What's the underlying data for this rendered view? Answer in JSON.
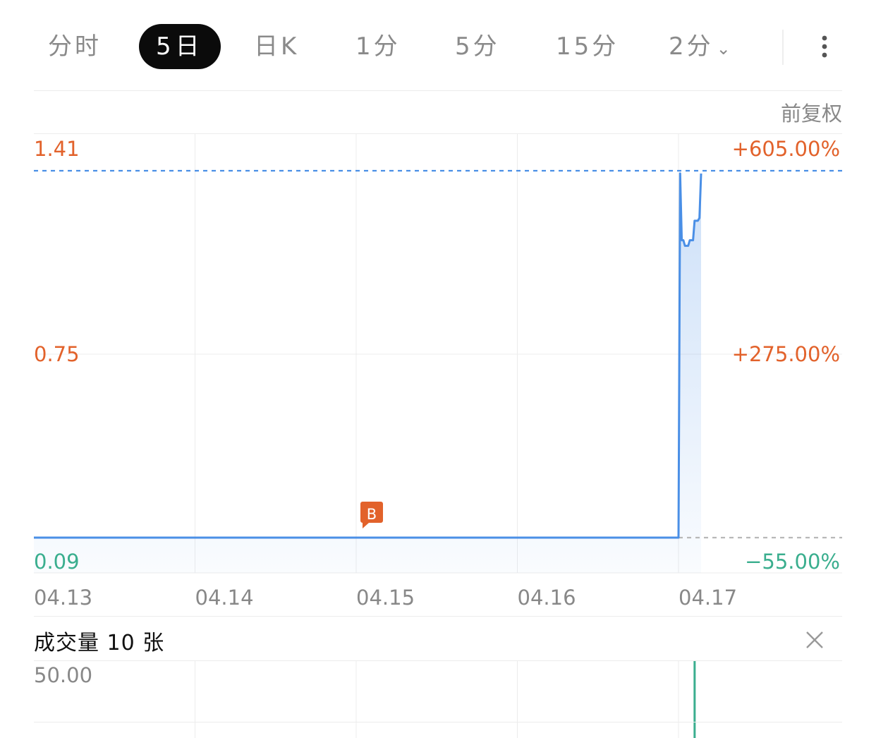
{
  "tabs": [
    {
      "label": "分时",
      "active": false
    },
    {
      "label": "5日",
      "active": true
    },
    {
      "label": "日K",
      "active": false
    },
    {
      "label": "1分",
      "active": false
    },
    {
      "label": "5分",
      "active": false
    },
    {
      "label": "15分",
      "active": false
    },
    {
      "label": "2分",
      "active": false,
      "dropdown": true
    }
  ],
  "more_icon": "more-vertical-icon",
  "adjust_label": "前复权",
  "chart_data": {
    "type": "line",
    "x_categories": [
      "04.13",
      "04.14",
      "04.15",
      "04.16",
      "04.17"
    ],
    "y_ticks_left": [
      "1.41",
      "0.75",
      "0.09"
    ],
    "y_ticks_right": [
      "+605.00%",
      "+275.00%",
      "−55.00%"
    ],
    "ylim": [
      0.09,
      1.41
    ],
    "reference_price": 0.2,
    "series": [
      {
        "values": [
          [
            0,
            0.09
          ],
          [
            4.0,
            0.09
          ],
          [
            4.01,
            1.4
          ],
          [
            4.02,
            1.16
          ],
          [
            4.03,
            1.16
          ],
          [
            4.04,
            1.14
          ],
          [
            4.06,
            1.14
          ],
          [
            4.07,
            1.16
          ],
          [
            4.09,
            1.16
          ],
          [
            4.1,
            1.23
          ],
          [
            4.12,
            1.23
          ],
          [
            4.13,
            1.24
          ],
          [
            4.14,
            1.4
          ]
        ]
      }
    ],
    "marker": {
      "label": "B",
      "x": 2.0,
      "y": 0.09
    },
    "colors": {
      "line": "#4a8fe6",
      "up": "#e2622b",
      "down": "#3aae8e",
      "dash": "#4a8fe6",
      "grid": "#ececec"
    },
    "grid": true
  },
  "volume": {
    "title": "成交量 10 张",
    "y_tick": "50.00",
    "bar": {
      "x": 4.1,
      "value": 50
    },
    "bar_color": "#3aae8e",
    "close_icon": "close-icon"
  }
}
